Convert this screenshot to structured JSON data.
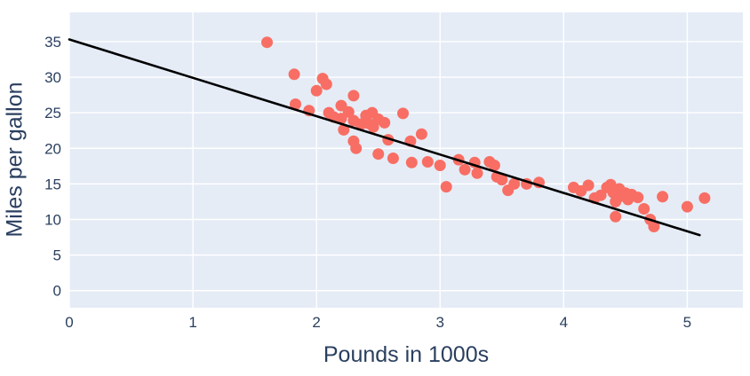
{
  "chart_data": {
    "type": "scatter",
    "title": "",
    "xlabel": "Pounds in 1000s",
    "ylabel": "Miles per gallon",
    "xlim": [
      0,
      5.45
    ],
    "ylim": [
      -2.4,
      39.1
    ],
    "xticks": [
      0,
      1,
      2,
      3,
      4,
      5
    ],
    "yticks": [
      0,
      5,
      10,
      15,
      20,
      25,
      30,
      35
    ],
    "grid": true,
    "legend": "none",
    "colors": {
      "point": "#f86e64",
      "trend": "#000000",
      "plot_bg": "#e5ecf6",
      "grid": "#ffffff",
      "text": "#2a3f5f"
    },
    "points": [
      [
        1.6,
        34.9
      ],
      [
        1.82,
        30.4
      ],
      [
        1.83,
        26.2
      ],
      [
        1.94,
        25.3
      ],
      [
        2.0,
        28.1
      ],
      [
        2.05,
        29.8
      ],
      [
        2.08,
        29.0
      ],
      [
        2.1,
        25.0
      ],
      [
        2.14,
        24.4
      ],
      [
        2.2,
        26.0
      ],
      [
        2.2,
        24.2
      ],
      [
        2.22,
        22.6
      ],
      [
        2.26,
        25.1
      ],
      [
        2.3,
        27.4
      ],
      [
        2.3,
        23.9
      ],
      [
        2.3,
        21.0
      ],
      [
        2.32,
        20.0
      ],
      [
        2.36,
        23.4
      ],
      [
        2.4,
        24.6
      ],
      [
        2.42,
        23.5
      ],
      [
        2.45,
        25.0
      ],
      [
        2.46,
        23.0
      ],
      [
        2.5,
        24.1
      ],
      [
        2.5,
        19.2
      ],
      [
        2.55,
        23.6
      ],
      [
        2.58,
        21.2
      ],
      [
        2.62,
        18.6
      ],
      [
        2.7,
        24.9
      ],
      [
        2.76,
        21.0
      ],
      [
        2.77,
        18.0
      ],
      [
        2.85,
        22.0
      ],
      [
        2.9,
        18.1
      ],
      [
        3.0,
        17.6
      ],
      [
        3.05,
        14.6
      ],
      [
        3.15,
        18.4
      ],
      [
        3.2,
        17.0
      ],
      [
        3.28,
        18.0
      ],
      [
        3.3,
        16.5
      ],
      [
        3.4,
        18.1
      ],
      [
        3.44,
        17.6
      ],
      [
        3.46,
        16.0
      ],
      [
        3.5,
        15.6
      ],
      [
        3.55,
        14.1
      ],
      [
        3.6,
        15.0
      ],
      [
        3.7,
        15.0
      ],
      [
        3.8,
        15.2
      ],
      [
        4.08,
        14.5
      ],
      [
        4.14,
        14.0
      ],
      [
        4.2,
        14.8
      ],
      [
        4.25,
        13.0
      ],
      [
        4.3,
        13.4
      ],
      [
        4.35,
        14.5
      ],
      [
        4.38,
        14.9
      ],
      [
        4.4,
        13.8
      ],
      [
        4.42,
        12.5
      ],
      [
        4.42,
        10.4
      ],
      [
        4.45,
        14.3
      ],
      [
        4.45,
        13.2
      ],
      [
        4.5,
        13.7
      ],
      [
        4.52,
        12.8
      ],
      [
        4.55,
        13.5
      ],
      [
        4.6,
        13.1
      ],
      [
        4.65,
        11.5
      ],
      [
        4.7,
        10.0
      ],
      [
        4.73,
        9.0
      ],
      [
        4.8,
        13.2
      ],
      [
        5.0,
        11.8
      ],
      [
        5.14,
        13.0
      ]
    ],
    "trend_line": {
      "x": [
        0,
        5.1
      ],
      "y": [
        35.3,
        7.8
      ]
    }
  }
}
